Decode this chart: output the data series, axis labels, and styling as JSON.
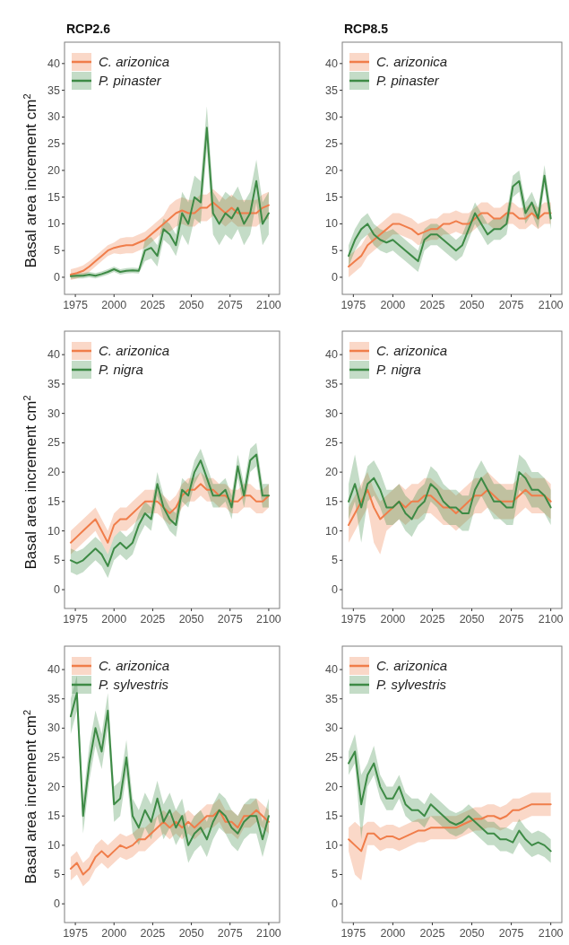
{
  "chart_data": [
    {
      "type": "line",
      "title": "RCP2.6",
      "ylabel": "Basal area increment  cm$^{2}$",
      "legend": "top left",
      "xlim": [
        1968,
        2107
      ],
      "xticks": [
        1975,
        2000,
        2025,
        2050,
        2075,
        2100
      ],
      "ylim": [
        -3.2,
        44
      ],
      "yticks": [
        0,
        5,
        10,
        15,
        20,
        25,
        30,
        35,
        40
      ],
      "x": [
        1972,
        1976,
        1980,
        1984,
        1988,
        1992,
        1996,
        2000,
        2004,
        2008,
        2012,
        2016,
        2020,
        2024,
        2028,
        2032,
        2036,
        2040,
        2044,
        2048,
        2052,
        2056,
        2060,
        2064,
        2068,
        2072,
        2076,
        2080,
        2084,
        2088,
        2092,
        2096,
        2100
      ],
      "series": [
        {
          "name": "C. arizonica",
          "color": "#f07d4a",
          "values": [
            0.5,
            0.8,
            1.2,
            2,
            3,
            4,
            5,
            5.5,
            5.8,
            6,
            6,
            6.5,
            7,
            8,
            9,
            10,
            11,
            12,
            12.5,
            12,
            12,
            13,
            13,
            14,
            13,
            12,
            13,
            12,
            12,
            12,
            12,
            13,
            13.5
          ],
          "lower": [
            -0.5,
            -0.2,
            0.2,
            1,
            2,
            3,
            4,
            4.5,
            4.3,
            4.5,
            4.5,
            5,
            5.5,
            6.5,
            7.5,
            8.5,
            8.5,
            9.5,
            10,
            9.5,
            9.5,
            10.5,
            10.5,
            11.5,
            10.5,
            9.5,
            10.5,
            9.5,
            9.5,
            9.5,
            9.5,
            10.5,
            11
          ],
          "upper": [
            1.5,
            1.8,
            2.2,
            3,
            4,
            5,
            6,
            6.5,
            7.3,
            7.5,
            7.5,
            8,
            8.5,
            9.5,
            10.5,
            11.5,
            13.5,
            14.5,
            15,
            14.5,
            14.5,
            15.5,
            15.5,
            16.5,
            15.5,
            14.5,
            15.5,
            14.5,
            14.5,
            14.5,
            14.5,
            15.5,
            16
          ]
        },
        {
          "name": "P. pinaster",
          "color": "#3d8a45",
          "values": [
            0.2,
            0.3,
            0.3,
            0.5,
            0.3,
            0.6,
            1,
            1.5,
            1,
            1.2,
            1.3,
            1.2,
            5,
            5.5,
            4,
            9,
            8,
            6,
            12,
            10,
            15,
            14,
            28,
            12,
            10,
            12,
            11,
            13,
            10,
            12,
            18,
            10,
            12
          ],
          "lower": [
            -0.3,
            -0.2,
            -0.2,
            0,
            -0.2,
            0.1,
            0.5,
            1,
            0.5,
            0.7,
            0.8,
            0.7,
            3,
            3.5,
            2,
            7,
            6,
            4,
            8,
            6,
            11,
            10,
            24,
            8,
            6,
            8,
            7,
            9,
            6,
            8,
            14,
            6,
            8
          ],
          "upper": [
            0.7,
            0.8,
            0.8,
            1,
            0.8,
            1.1,
            1.5,
            2,
            1.5,
            1.7,
            1.8,
            1.7,
            7,
            7.5,
            6,
            11,
            10,
            8,
            16,
            14,
            19,
            18,
            32,
            16,
            14,
            16,
            15,
            17,
            14,
            16,
            22,
            14,
            16
          ]
        }
      ]
    },
    {
      "type": "line",
      "title": "RCP8.5",
      "legend": "top left",
      "xlim": [
        1968,
        2107
      ],
      "xticks": [
        1975,
        2000,
        2025,
        2050,
        2075,
        2100
      ],
      "ylim": [
        -3.2,
        44
      ],
      "yticks": [
        0,
        5,
        10,
        15,
        20,
        25,
        30,
        35,
        40
      ],
      "x": [
        1972,
        1976,
        1980,
        1984,
        1988,
        1992,
        1996,
        2000,
        2004,
        2008,
        2012,
        2016,
        2020,
        2024,
        2028,
        2032,
        2036,
        2040,
        2044,
        2048,
        2052,
        2056,
        2060,
        2064,
        2068,
        2072,
        2076,
        2080,
        2084,
        2088,
        2092,
        2096,
        2100
      ],
      "series": [
        {
          "name": "C. arizonica",
          "color": "#f07d4a",
          "values": [
            2,
            3,
            4,
            6,
            7,
            8,
            9,
            10,
            10,
            9.5,
            9,
            8,
            8.5,
            9,
            9,
            10,
            10,
            10.5,
            10,
            10,
            11,
            12,
            12,
            11,
            11,
            12,
            12,
            11,
            11,
            12,
            11,
            12,
            12
          ],
          "lower": [
            0,
            1,
            2,
            4,
            5,
            6,
            7,
            8,
            8,
            7.5,
            7,
            6,
            6.5,
            7,
            7,
            8,
            8,
            8.5,
            8,
            8,
            9,
            10,
            10,
            9,
            9,
            10,
            10,
            9,
            9,
            10,
            9,
            10,
            10
          ],
          "upper": [
            4,
            5,
            6,
            8,
            9,
            10,
            11,
            12,
            12,
            11.5,
            11,
            10,
            10.5,
            11,
            11,
            12,
            12,
            12.5,
            12,
            12,
            13,
            14,
            14,
            13,
            13,
            14,
            14,
            13,
            13,
            14,
            13,
            14,
            14
          ]
        },
        {
          "name": "P. pinaster",
          "color": "#3d8a45",
          "values": [
            4,
            7,
            9,
            10,
            8,
            7,
            6.5,
            7,
            6,
            5,
            4,
            3,
            7,
            8,
            8,
            7,
            6,
            5,
            6,
            9,
            12,
            10,
            8,
            9,
            9,
            10,
            17,
            18,
            12,
            14,
            11,
            19,
            11
          ],
          "lower": [
            2,
            5,
            7,
            8,
            6,
            5,
            4.5,
            5,
            4,
            3,
            2,
            1,
            5,
            6,
            6,
            5,
            4,
            3,
            4,
            7,
            10,
            8,
            6,
            7,
            7,
            8,
            15,
            16,
            10,
            12,
            9,
            17,
            9
          ],
          "upper": [
            6,
            9,
            11,
            12,
            10,
            9,
            8.5,
            9,
            8,
            7,
            6,
            5,
            9,
            10,
            10,
            9,
            8,
            7,
            8,
            11,
            14,
            12,
            10,
            11,
            11,
            12,
            19,
            20,
            14,
            16,
            13,
            21,
            13
          ]
        }
      ]
    },
    {
      "type": "line",
      "ylabel": "Basal area increment  cm$^{2}$",
      "legend": "top left",
      "xlim": [
        1968,
        2107
      ],
      "xticks": [
        1975,
        2000,
        2025,
        2050,
        2075,
        2100
      ],
      "ylim": [
        -3.2,
        44
      ],
      "yticks": [
        0,
        5,
        10,
        15,
        20,
        25,
        30,
        35,
        40
      ],
      "x": [
        1972,
        1976,
        1980,
        1984,
        1988,
        1992,
        1996,
        2000,
        2004,
        2008,
        2012,
        2016,
        2020,
        2024,
        2028,
        2032,
        2036,
        2040,
        2044,
        2048,
        2052,
        2056,
        2060,
        2064,
        2068,
        2072,
        2076,
        2080,
        2084,
        2088,
        2092,
        2096,
        2100
      ],
      "series": [
        {
          "name": "C. arizonica",
          "color": "#f07d4a",
          "values": [
            8,
            9,
            10,
            11,
            12,
            10,
            8,
            11,
            12,
            12,
            13,
            14,
            15,
            15,
            15,
            14,
            13,
            14,
            16,
            17,
            17,
            18,
            17,
            17,
            16,
            16,
            15,
            15,
            16,
            16,
            15,
            15,
            16
          ],
          "lower": [
            6,
            7,
            8,
            9,
            10,
            8,
            6,
            9,
            10,
            10,
            11,
            12,
            13,
            13,
            13,
            12,
            11,
            12,
            14,
            15,
            15,
            16,
            15,
            15,
            14,
            14,
            13,
            13,
            14,
            14,
            13,
            13,
            14
          ],
          "upper": [
            10,
            11,
            12,
            13,
            14,
            12,
            10,
            13,
            14,
            14,
            15,
            16,
            17,
            17,
            17,
            16,
            15,
            16,
            18,
            19,
            19,
            20,
            19,
            19,
            18,
            18,
            17,
            17,
            18,
            18,
            17,
            17,
            18
          ]
        },
        {
          "name": "P. nigra",
          "color": "#3d8a45",
          "values": [
            5,
            4.5,
            5,
            6,
            7,
            6,
            4,
            7,
            8,
            7,
            8,
            11,
            13,
            12,
            18,
            14,
            12,
            11,
            17,
            16,
            20,
            22,
            19,
            16,
            16,
            17,
            14,
            21,
            16,
            22,
            23,
            16,
            16
          ],
          "lower": [
            3,
            2.5,
            3,
            4,
            5,
            4,
            2,
            5,
            6,
            5,
            6,
            9,
            11,
            10,
            16,
            12,
            10,
            9,
            15,
            14,
            18,
            20,
            17,
            14,
            14,
            15,
            12,
            19,
            14,
            20,
            21,
            14,
            14
          ],
          "upper": [
            7,
            6.5,
            7,
            8,
            9,
            8,
            6,
            9,
            10,
            9,
            10,
            13,
            15,
            14,
            20,
            16,
            14,
            13,
            19,
            18,
            22,
            24,
            21,
            18,
            18,
            19,
            16,
            23,
            18,
            24,
            25,
            18,
            18
          ]
        }
      ]
    },
    {
      "type": "line",
      "legend": "top left",
      "xlim": [
        1968,
        2107
      ],
      "xticks": [
        1975,
        2000,
        2025,
        2050,
        2075,
        2100
      ],
      "ylim": [
        -3.2,
        44
      ],
      "yticks": [
        0,
        5,
        10,
        15,
        20,
        25,
        30,
        35,
        40
      ],
      "x": [
        1972,
        1976,
        1980,
        1984,
        1988,
        1992,
        1996,
        2000,
        2004,
        2008,
        2012,
        2016,
        2020,
        2024,
        2028,
        2032,
        2036,
        2040,
        2044,
        2048,
        2052,
        2056,
        2060,
        2064,
        2068,
        2072,
        2076,
        2080,
        2084,
        2088,
        2092,
        2096,
        2100
      ],
      "series": [
        {
          "name": "C. arizonica",
          "color": "#f07d4a",
          "values": [
            11,
            13,
            15,
            17,
            14,
            12,
            13,
            14,
            15,
            14,
            15,
            15,
            16,
            16,
            15,
            14,
            14,
            13,
            14,
            15,
            16,
            16,
            17,
            16,
            15,
            15,
            15,
            16,
            17,
            16,
            16,
            16,
            15
          ],
          "lower": [
            8,
            10,
            12,
            14,
            8,
            6,
            10,
            11,
            12,
            11,
            12,
            12,
            13,
            13,
            12,
            11,
            11,
            10,
            11,
            12,
            13,
            13,
            14,
            13,
            12,
            12,
            12,
            13,
            14,
            13,
            13,
            13,
            12
          ],
          "upper": [
            14,
            16,
            18,
            20,
            17,
            15,
            16,
            17,
            18,
            17,
            18,
            18,
            19,
            19,
            18,
            17,
            17,
            16,
            17,
            18,
            19,
            19,
            20,
            19,
            18,
            18,
            18,
            19,
            20,
            19,
            19,
            19,
            18
          ]
        },
        {
          "name": "P. nigra",
          "color": "#3d8a45",
          "values": [
            15,
            18,
            14,
            18,
            19,
            17,
            14,
            14,
            15,
            13,
            12,
            14,
            15,
            18,
            17,
            15,
            14,
            14,
            13,
            13,
            17,
            19,
            17,
            15,
            15,
            14,
            14,
            20,
            19,
            17,
            17,
            16,
            14
          ],
          "lower": [
            12,
            15,
            8,
            15,
            16,
            14,
            11,
            11,
            12,
            10,
            9,
            11,
            12,
            15,
            14,
            12,
            11,
            11,
            10,
            10,
            14,
            16,
            14,
            12,
            12,
            11,
            11,
            17,
            16,
            14,
            14,
            13,
            11
          ],
          "upper": [
            18,
            23,
            17,
            21,
            22,
            20,
            17,
            17,
            18,
            16,
            15,
            17,
            18,
            21,
            20,
            18,
            17,
            17,
            16,
            16,
            20,
            22,
            20,
            18,
            18,
            17,
            17,
            23,
            22,
            20,
            20,
            19,
            17
          ]
        }
      ]
    },
    {
      "type": "line",
      "ylabel": "Basal area increment  cm$^{2}$",
      "legend": "top left",
      "xlim": [
        1968,
        2107
      ],
      "xticks": [
        1975,
        2000,
        2025,
        2050,
        2075,
        2100
      ],
      "ylim": [
        -3.2,
        44
      ],
      "yticks": [
        0,
        5,
        10,
        15,
        20,
        25,
        30,
        35,
        40
      ],
      "x": [
        1972,
        1976,
        1980,
        1984,
        1988,
        1992,
        1996,
        2000,
        2004,
        2008,
        2012,
        2016,
        2020,
        2024,
        2028,
        2032,
        2036,
        2040,
        2044,
        2048,
        2052,
        2056,
        2060,
        2064,
        2068,
        2072,
        2076,
        2080,
        2084,
        2088,
        2092,
        2096,
        2100
      ],
      "series": [
        {
          "name": "C. arizonica",
          "color": "#f07d4a",
          "values": [
            6,
            7,
            5,
            6,
            8,
            9,
            8,
            9,
            10,
            9.5,
            10,
            11,
            11,
            12,
            13,
            14,
            13,
            14,
            13,
            14,
            13,
            14,
            15,
            15,
            16,
            14,
            14,
            13,
            15,
            15,
            16,
            15,
            14
          ],
          "lower": [
            4,
            5,
            3,
            4,
            6,
            7,
            6,
            7,
            8,
            7.5,
            8,
            9,
            9,
            10,
            11,
            12,
            11,
            12,
            11,
            12,
            11,
            12,
            13,
            13,
            14,
            12,
            12,
            11,
            13,
            13,
            14,
            13,
            12
          ],
          "upper": [
            8,
            9,
            7,
            8,
            10,
            11,
            10,
            11,
            12,
            11.5,
            12,
            13,
            13,
            14,
            15,
            16,
            15,
            16,
            15,
            16,
            15,
            16,
            17,
            17,
            18,
            16,
            16,
            15,
            17,
            17,
            18,
            17,
            16
          ]
        },
        {
          "name": "P. sylvestris",
          "color": "#3d8a45",
          "values": [
            32,
            36,
            15,
            24,
            30,
            26,
            33,
            17,
            18,
            25,
            15,
            13,
            16,
            14,
            18,
            14,
            16,
            13,
            15,
            10,
            12,
            13,
            11,
            14,
            16,
            15,
            13,
            12,
            14,
            15,
            15,
            11,
            15
          ],
          "lower": [
            29,
            33,
            12,
            21,
            27,
            23,
            30,
            14,
            15,
            22,
            12,
            10,
            13,
            11,
            15,
            11,
            13,
            10,
            12,
            7,
            9,
            10,
            8,
            11,
            13,
            12,
            10,
            9,
            11,
            12,
            12,
            8,
            12
          ],
          "upper": [
            35,
            39,
            18,
            27,
            33,
            29,
            36,
            20,
            21,
            28,
            18,
            16,
            19,
            17,
            21,
            17,
            19,
            16,
            18,
            13,
            15,
            16,
            14,
            17,
            19,
            18,
            16,
            15,
            17,
            18,
            18,
            14,
            18
          ]
        }
      ]
    },
    {
      "type": "line",
      "legend": "top left",
      "xlim": [
        1968,
        2107
      ],
      "xticks": [
        1975,
        2000,
        2025,
        2050,
        2075,
        2100
      ],
      "ylim": [
        -3.2,
        44
      ],
      "yticks": [
        0,
        5,
        10,
        15,
        20,
        25,
        30,
        35,
        40
      ],
      "x": [
        1972,
        1976,
        1980,
        1984,
        1988,
        1992,
        1996,
        2000,
        2004,
        2008,
        2012,
        2016,
        2020,
        2024,
        2028,
        2032,
        2036,
        2040,
        2044,
        2048,
        2052,
        2056,
        2060,
        2064,
        2068,
        2072,
        2076,
        2080,
        2084,
        2088,
        2092,
        2096,
        2100
      ],
      "series": [
        {
          "name": "C. arizonica",
          "color": "#f07d4a",
          "values": [
            11,
            10,
            9,
            12,
            12,
            11,
            11.5,
            11.5,
            11,
            11.5,
            12,
            12.5,
            12.5,
            13,
            13,
            13,
            13,
            13,
            13.5,
            14,
            14.5,
            14.5,
            15,
            15,
            14.5,
            15,
            16,
            16,
            16.5,
            17,
            17,
            17,
            17
          ],
          "lower": [
            9,
            5,
            4,
            10,
            10,
            9,
            9.5,
            9.5,
            9,
            9.5,
            10,
            10.5,
            10.5,
            11,
            11,
            11,
            11,
            11,
            11.5,
            12,
            12.5,
            12.5,
            13,
            13,
            12.5,
            13,
            14,
            14,
            14.5,
            15,
            15,
            15,
            15
          ],
          "upper": [
            13,
            14,
            13,
            14,
            14,
            13,
            13.5,
            13.5,
            13,
            13.5,
            14,
            14.5,
            14.5,
            15,
            15,
            15,
            15,
            15,
            15.5,
            16,
            16.5,
            16.5,
            17,
            17,
            16.5,
            17,
            18,
            18,
            18.5,
            19,
            19,
            19,
            19
          ]
        },
        {
          "name": "P. sylvestris",
          "color": "#3d8a45",
          "values": [
            24,
            26,
            17,
            22,
            24,
            20,
            18,
            18,
            20,
            17,
            16,
            16,
            15,
            17,
            16,
            15,
            14,
            13.5,
            14,
            15,
            14,
            13,
            12,
            12,
            11,
            11,
            10.5,
            12.5,
            11,
            10,
            10.5,
            10,
            9
          ],
          "lower": [
            22,
            24,
            11,
            20,
            22,
            18,
            16,
            16,
            18,
            15,
            14,
            14,
            13,
            15,
            14,
            13,
            12,
            11.5,
            12,
            13,
            12,
            11,
            10,
            10,
            9,
            9,
            8.5,
            10.5,
            9,
            8,
            8.5,
            8,
            7
          ],
          "upper": [
            26,
            29,
            22,
            24,
            27,
            22,
            20,
            20,
            22,
            19,
            18,
            18,
            17,
            19,
            18,
            17,
            16,
            15.5,
            16,
            17,
            16,
            15,
            14,
            14,
            13,
            13,
            12.5,
            14.5,
            13,
            12,
            12.5,
            12,
            11
          ]
        }
      ]
    }
  ]
}
